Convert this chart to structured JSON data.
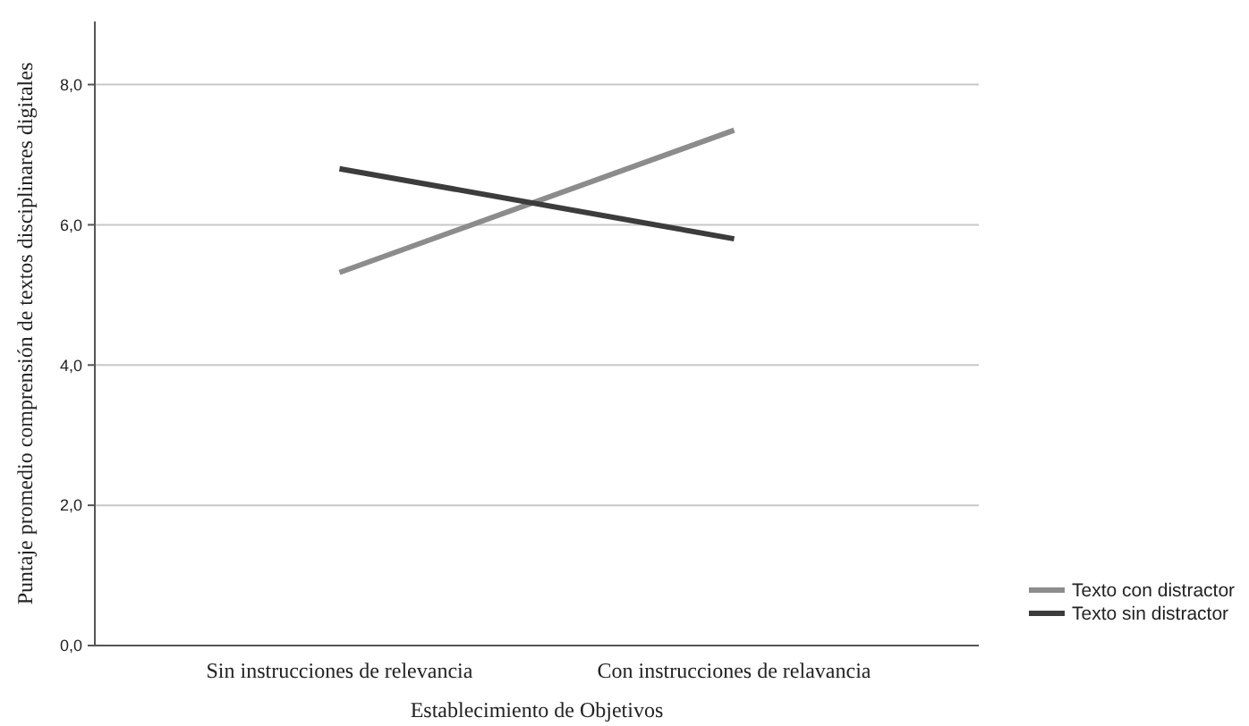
{
  "chart_data": {
    "type": "line",
    "xlabel": "Establecimiento de Objetivos",
    "ylabel": "Puntaje promedio comprensión de textos disciplinares digitales",
    "categories": [
      "Sin instrucciones de relevancia",
      "Con instrucciones de relavancia"
    ],
    "series": [
      {
        "name": "Texto con distractor",
        "color": "#8c8c8c",
        "values": [
          5.32,
          7.35
        ]
      },
      {
        "name": "Texto sin distractor",
        "color": "#3c3c3c",
        "values": [
          6.8,
          5.8
        ]
      }
    ],
    "ylim": [
      0,
      8.9
    ],
    "yticks": [
      {
        "value": 0,
        "label": "0,0"
      },
      {
        "value": 2,
        "label": "2,0"
      },
      {
        "value": 4,
        "label": "4,0"
      },
      {
        "value": 6,
        "label": "6,0"
      },
      {
        "value": 8,
        "label": "8,0"
      }
    ],
    "grid": "y",
    "legend": "bottom right",
    "marker": "none",
    "line_style": "solid"
  }
}
